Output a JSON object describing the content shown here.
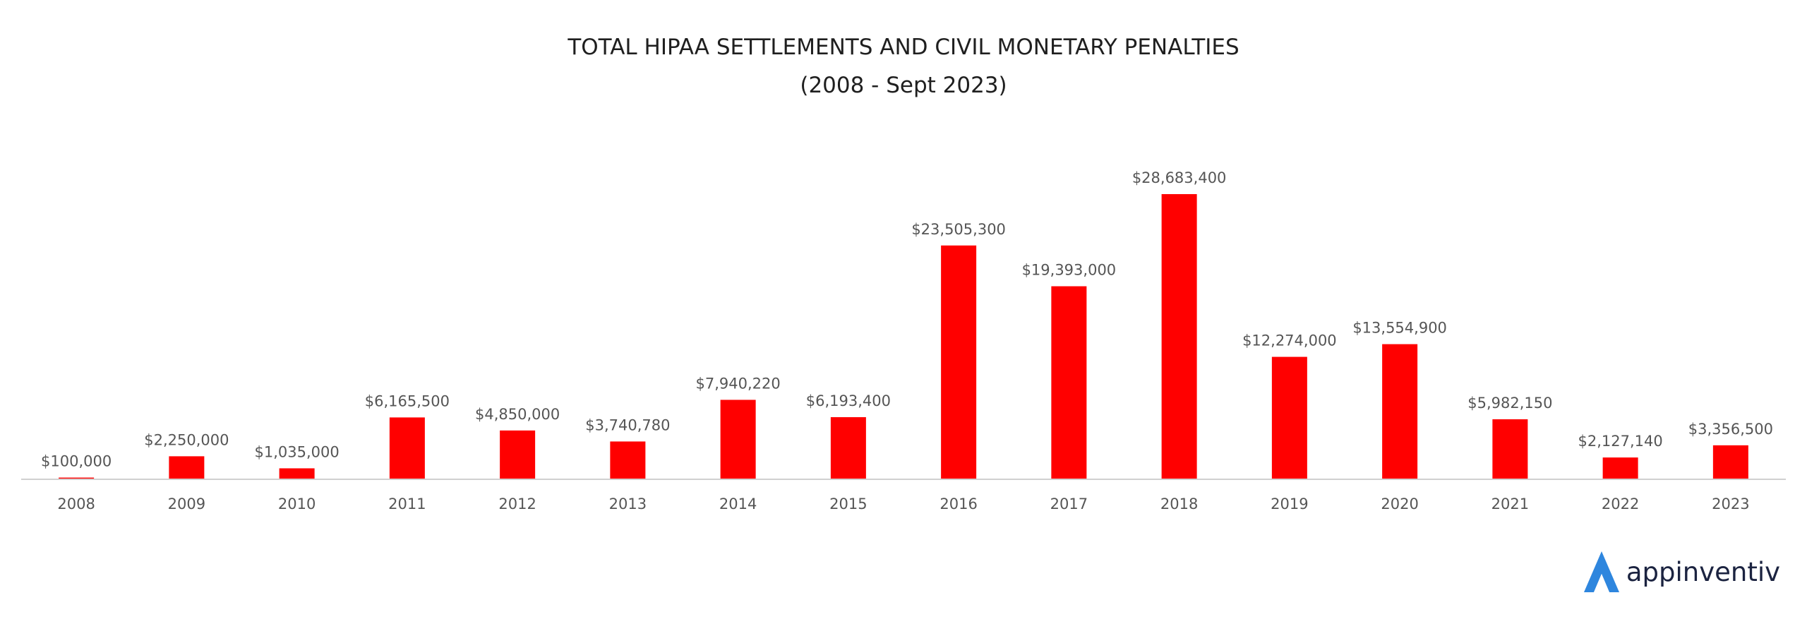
{
  "chart_data": {
    "type": "bar",
    "title": "TOTAL HIPAA SETTLEMENTS AND CIVIL MONETARY PENALTIES",
    "subtitle": "(2008 - Sept 2023)",
    "categories": [
      "2008",
      "2009",
      "2010",
      "2011",
      "2012",
      "2013",
      "2014",
      "2015",
      "2016",
      "2017",
      "2018",
      "2019",
      "2020",
      "2021",
      "2022",
      "2023"
    ],
    "values": [
      100000,
      2250000,
      1035000,
      6165500,
      4850000,
      3740780,
      7940220,
      6193400,
      23505300,
      19393000,
      28683400,
      12274000,
      13554900,
      5982150,
      2127140,
      3356500
    ],
    "data_labels": [
      "$100,000",
      "$2,250,000",
      "$1,035,000",
      "$6,165,500",
      "$4,850,000",
      "$3,740,780",
      "$7,940,220",
      "$6,193,400",
      "$23,505,300",
      "$19,393,000",
      "$28,683,400",
      "$12,274,000",
      "$13,554,900",
      "$5,982,150",
      "$2,127,140",
      "$3,356,500"
    ],
    "xlabel": "",
    "ylabel": "",
    "ylim": [
      0,
      28683400
    ],
    "grid": false,
    "legend": "none",
    "bar_color": "#ff0000"
  },
  "brand": {
    "name": "appinventiv",
    "logo_icon": "appinventiv-logo-icon",
    "logo_color": "#2e86de"
  }
}
